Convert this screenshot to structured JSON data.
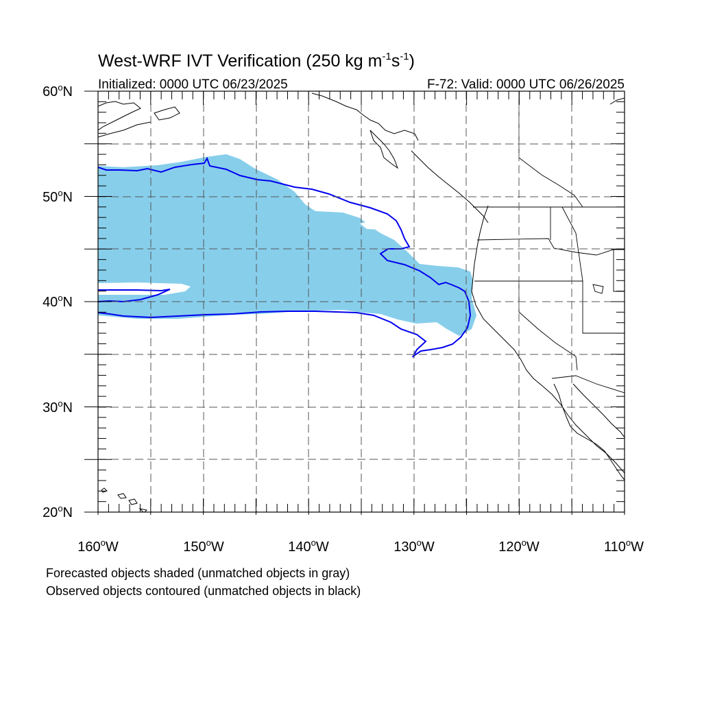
{
  "title": {
    "main": "West-WRF IVT Verification (250 kg m",
    "sup1": "-1",
    "mid": "s",
    "sup2": "-1",
    "end": ")"
  },
  "subtitle": {
    "left": "Initialized: 0000 UTC 06/23/2025",
    "right": "F-72: Valid: 0000 UTC 06/26/2025"
  },
  "axes": {
    "x_ticks": [
      {
        "deg": "160",
        "hemi": "W"
      },
      {
        "deg": "150",
        "hemi": "W"
      },
      {
        "deg": "140",
        "hemi": "W"
      },
      {
        "deg": "130",
        "hemi": "W"
      },
      {
        "deg": "120",
        "hemi": "W"
      },
      {
        "deg": "110",
        "hemi": "W"
      }
    ],
    "y_ticks": [
      {
        "deg": "60",
        "hemi": "N"
      },
      {
        "deg": "50",
        "hemi": "N"
      },
      {
        "deg": "40",
        "hemi": "N"
      },
      {
        "deg": "30",
        "hemi": "N"
      },
      {
        "deg": "20",
        "hemi": "N"
      }
    ],
    "lon_range": [
      -160,
      -110
    ],
    "lat_range": [
      20,
      60
    ]
  },
  "legend": {
    "line1": "Forecasted objects shaded (unmatched objects in gray)",
    "line2": "Observed objects contoured (unmatched objects in black)"
  },
  "colors": {
    "forecast_fill": "#87ceeb",
    "observed_contour": "#0000ee",
    "coastline": "#000000",
    "grid": "#555555"
  }
}
